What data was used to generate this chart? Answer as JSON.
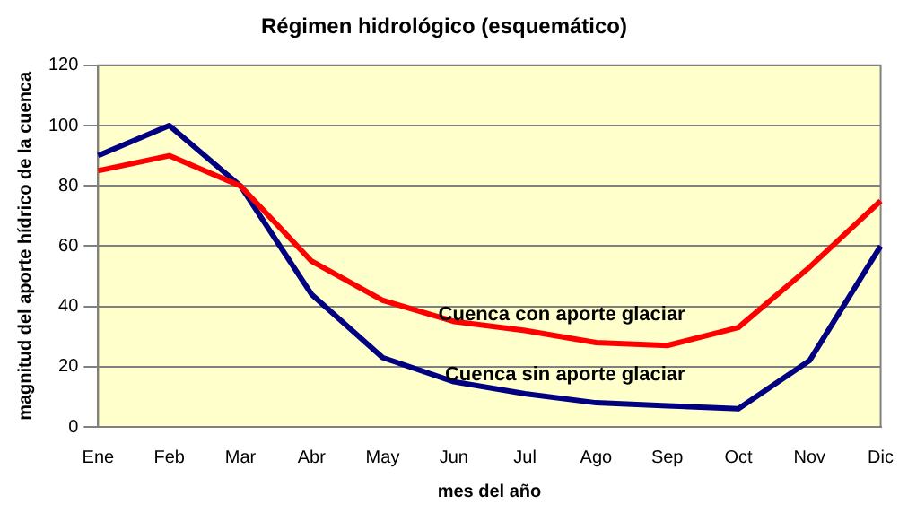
{
  "chart_data": {
    "type": "line",
    "title": "Régimen hidrológico (esquemático)",
    "xlabel": "mes del año",
    "ylabel": "magnitud del aporte hídrico de la cuenca",
    "categories": [
      "Ene",
      "Feb",
      "Mar",
      "Abr",
      "May",
      "Jun",
      "Jul",
      "Ago",
      "Sep",
      "Oct",
      "Nov",
      "Dic"
    ],
    "series": [
      {
        "name": "Cuenca con aporte glaciar",
        "color": "#ff0000",
        "values": [
          85,
          90,
          80,
          55,
          42,
          35,
          32,
          28,
          27,
          33,
          53,
          75
        ]
      },
      {
        "name": "Cuenca sin aporte glaciar",
        "color": "#000080",
        "values": [
          90,
          100,
          80,
          44,
          23,
          15,
          11,
          8,
          7,
          6,
          22,
          60
        ]
      }
    ],
    "ylim": [
      0,
      120
    ],
    "yticks": [
      0,
      20,
      40,
      60,
      80,
      100,
      120
    ],
    "grid": "y",
    "legend": false,
    "marker": "none",
    "line_style": "solid"
  }
}
